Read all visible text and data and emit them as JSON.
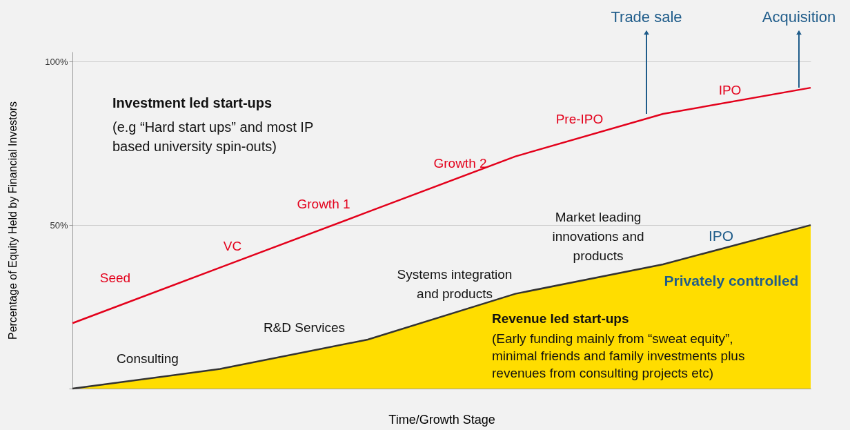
{
  "chart_data": {
    "type": "line",
    "xlabel": "Time/Growth Stage",
    "ylabel": "Percentage of Equity Held by Financial Investors",
    "categories": [
      null,
      null,
      null,
      null,
      null,
      null
    ],
    "series": [
      {
        "type": "area",
        "color": "#ffdd00",
        "values": [
          0,
          6,
          15,
          29,
          38,
          50
        ]
      },
      {
        "color": "#e3001b",
        "values": [
          20,
          37,
          54,
          71,
          84,
          92
        ]
      }
    ],
    "ylim": [
      0,
      103
    ],
    "yticks": [
      {
        "value": 0,
        "label": null
      },
      {
        "value": 50,
        "label": "50%"
      },
      {
        "value": 100,
        "label": "100%"
      }
    ],
    "grid": "y",
    "annotations": [
      "Trade sale",
      "Acquisition",
      "Investment led start-ups",
      "(e.g “Hard start ups” and most IP",
      "based university spin-outs)",
      "Seed",
      "VC",
      "Growth 1",
      "Growth 2",
      "Pre-IPO",
      "IPO",
      "Consulting",
      "R&D Services",
      "Systems integration",
      "and products",
      "Market leading",
      "innovations and",
      "products",
      "IPO",
      "Privately controlled",
      "Revenue led start-ups",
      "(Early funding mainly from “sweat equity”,",
      "minimal friends and family investments plus",
      "revenues from consulting projects etc)"
    ]
  }
}
